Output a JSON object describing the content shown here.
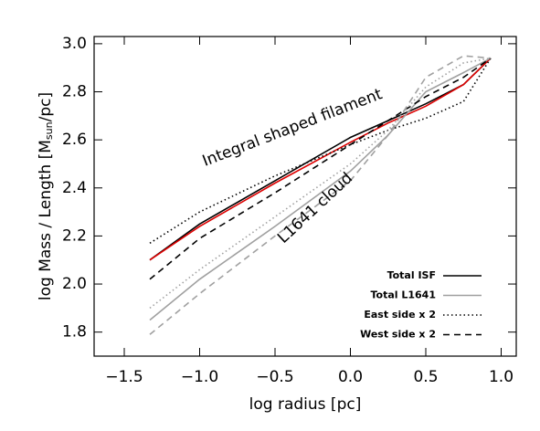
{
  "chart_data": {
    "type": "line",
    "xlabel": "log radius [pc]",
    "ylabel": [
      "log Mass / Length [M",
      "sun",
      "/pc]"
    ],
    "xlim": [
      -1.7,
      1.1
    ],
    "ylim": [
      1.7,
      3.03
    ],
    "xticks": [
      {
        "value": -1.5,
        "label": "−1.5"
      },
      {
        "value": -1.0,
        "label": "−1.0"
      },
      {
        "value": -0.5,
        "label": "−0.5"
      },
      {
        "value": 0.0,
        "label": "0.0"
      },
      {
        "value": 0.5,
        "label": "0.5"
      },
      {
        "value": 1.0,
        "label": "1.0"
      }
    ],
    "yticks": [
      1.8,
      {
        "value": 2.0,
        "label": "2.0"
      },
      2.2,
      2.4,
      2.6,
      2.8,
      {
        "value": 3.0,
        "label": "3.0"
      }
    ],
    "x": [
      -1.33,
      -1.0,
      -0.5,
      0.0,
      0.25,
      0.5,
      0.75,
      0.93
    ],
    "series": [
      {
        "name": "Total ISF",
        "color": "#000000",
        "dash": "solid",
        "values": [
          2.1,
          2.25,
          2.43,
          2.61,
          2.68,
          2.75,
          2.83,
          2.94
        ]
      },
      {
        "color": "#dd0000",
        "dash": "solid",
        "values": [
          2.1,
          2.24,
          2.42,
          2.59,
          2.67,
          2.74,
          2.83,
          2.94
        ]
      },
      {
        "name": "Total L1641",
        "color": "#a0a0a0",
        "dash": "solid",
        "values": [
          1.85,
          2.02,
          2.24,
          2.47,
          2.62,
          2.8,
          2.88,
          2.94
        ]
      },
      {
        "name": "East side x 2",
        "color": "#000000",
        "dash": "dotted",
        "values": [
          2.17,
          2.3,
          2.45,
          2.58,
          2.64,
          2.69,
          2.76,
          2.94
        ]
      },
      {
        "name": "West side x 2",
        "color": "#000000",
        "dash": "dashed",
        "values": [
          2.02,
          2.19,
          2.38,
          2.58,
          2.68,
          2.78,
          2.86,
          2.94
        ]
      },
      {
        "color": "#a0a0a0",
        "dash": "dotted",
        "values": [
          1.9,
          2.06,
          2.28,
          2.5,
          2.64,
          2.82,
          2.92,
          2.94
        ]
      },
      {
        "color": "#a0a0a0",
        "dash": "dashed",
        "values": [
          1.79,
          1.96,
          2.2,
          2.43,
          2.62,
          2.86,
          2.95,
          2.94
        ]
      }
    ],
    "annotations": [
      {
        "text": "Integral shaped filament",
        "color": "#000000"
      },
      {
        "text": "L1641 cloud",
        "color": "#a0a0a0"
      }
    ],
    "legend": "lower right"
  }
}
